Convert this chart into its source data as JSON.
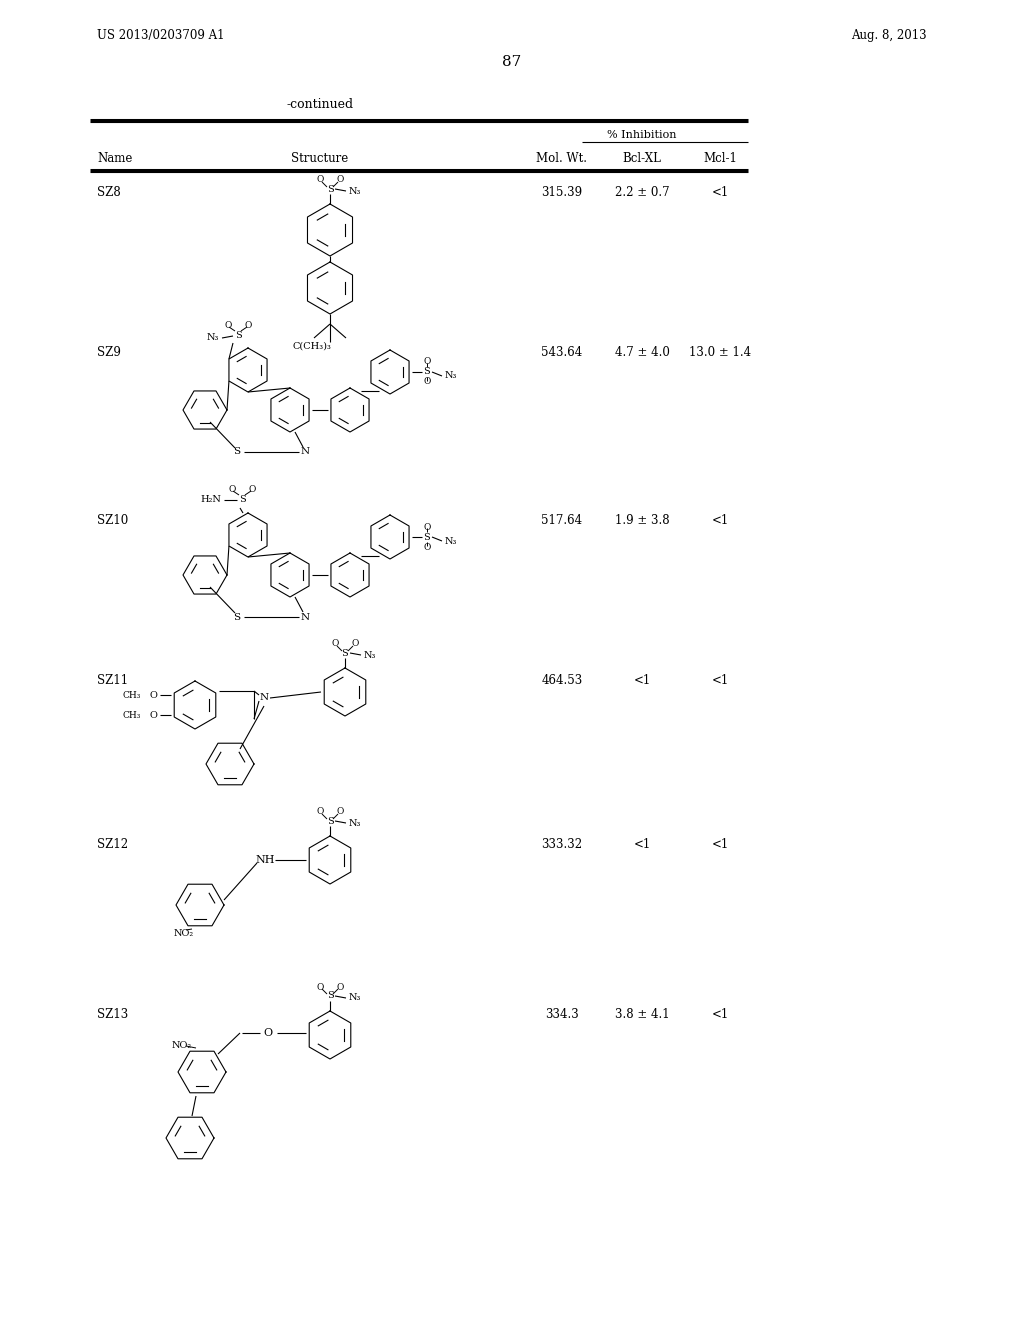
{
  "page_number": "87",
  "patent_number": "US 2013/0203709 A1",
  "patent_date": "Aug. 8, 2013",
  "continued_label": "-continued",
  "col1": "Name",
  "col2": "Structure",
  "col3": "Mol. Wt.",
  "col4": "Bcl-XL",
  "col5": "Mcl-1",
  "pct_inhibition": "% Inhibition",
  "rows": [
    {
      "name": "SZ8",
      "mol_wt": "315.39",
      "bcl_xl": "2.2 ± 0.7",
      "mcl1": "<1"
    },
    {
      "name": "SZ9",
      "mol_wt": "543.64",
      "bcl_xl": "4.7 ± 4.0",
      "mcl1": "13.0 ± 1.4"
    },
    {
      "name": "SZ10",
      "mol_wt": "517.64",
      "bcl_xl": "1.9 ± 3.8",
      "mcl1": "<1"
    },
    {
      "name": "SZ11",
      "mol_wt": "464.53",
      "bcl_xl": "<1",
      "mcl1": "<1"
    },
    {
      "name": "SZ12",
      "mol_wt": "333.32",
      "bcl_xl": "<1",
      "mcl1": "<1"
    },
    {
      "name": "SZ13",
      "mol_wt": "334.3",
      "bcl_xl": "3.8 ± 4.1",
      "mcl1": "<1"
    }
  ]
}
